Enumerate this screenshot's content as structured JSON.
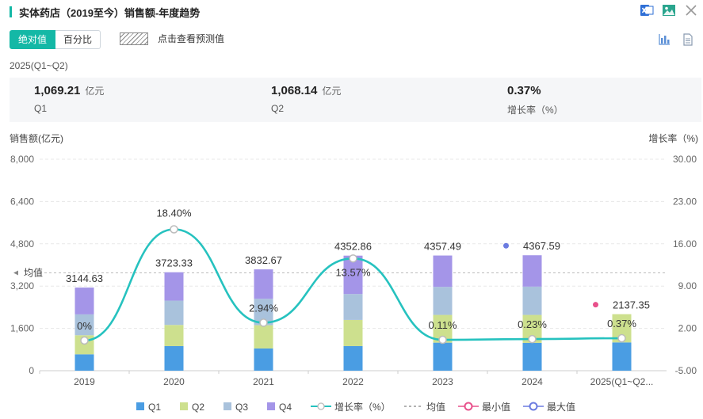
{
  "header": {
    "title": "实体药店（2019至今）销售额-年度趋势",
    "icons": [
      "excel-export-icon",
      "image-export-icon",
      "close-icon"
    ]
  },
  "toolbar": {
    "absolute_label": "绝对值",
    "percent_label": "百分比",
    "forecast_label": "点击查看预测值",
    "view_icons": [
      "bar-chart-icon",
      "table-icon"
    ]
  },
  "summary": {
    "period": "2025(Q1~Q2)",
    "items": [
      {
        "value": "1,069.21",
        "unit": "亿元",
        "label": "Q1"
      },
      {
        "value": "1,068.14",
        "unit": "亿元",
        "label": "Q2"
      },
      {
        "value": "0.37%",
        "unit": "",
        "label": "增长率（%）"
      }
    ]
  },
  "chart_data": {
    "type": "bar",
    "stacked": true,
    "ylabel": "销售额(亿元)",
    "y2label": "增长率（%)",
    "ylim": [
      0,
      8000
    ],
    "yticks": [
      "0",
      "1,600",
      "3,200",
      "4,800",
      "6,400",
      "8,000"
    ],
    "y2lim": [
      -5,
      30
    ],
    "y2ticks": [
      "-5.00",
      "2.00",
      "9.00",
      "16.00",
      "23.00",
      "30.00"
    ],
    "categories": [
      "2019",
      "2020",
      "2021",
      "2022",
      "2023",
      "2024",
      "2025(Q1~Q2..."
    ],
    "series": [
      {
        "name": "Q1",
        "color": "#4a9de3",
        "values": [
          620,
          930,
          840,
          930,
          1060,
          1050,
          1069.21
        ]
      },
      {
        "name": "Q2",
        "color": "#cde08e",
        "values": [
          720,
          800,
          880,
          990,
          1050,
          1060,
          1068.14
        ]
      },
      {
        "name": "Q3",
        "color": "#a9c2dc",
        "values": [
          790,
          920,
          1000,
          980,
          1060,
          1070,
          0
        ]
      },
      {
        "name": "Q4",
        "color": "#a495e8",
        "values": [
          1014.63,
          1073.33,
          1112.67,
          1452.86,
          1187.49,
          1187.59,
          0
        ]
      }
    ],
    "totals": [
      3144.63,
      3723.33,
      3832.67,
      4352.86,
      4357.49,
      4367.59,
      2137.35
    ],
    "total_labels": [
      "3144.63",
      "3723.33",
      "3832.67",
      "4352.86",
      "4357.49",
      "4367.59",
      "2137.35"
    ],
    "growth": {
      "name": "增长率（%）",
      "color": "#26c2bf",
      "values": [
        0,
        18.4,
        2.94,
        13.57,
        0.11,
        0.23,
        0.37
      ],
      "labels": [
        "0%",
        "18.40%",
        "2.94%",
        "13.57%",
        "0.11%",
        "0.23%",
        "0.37%"
      ]
    },
    "average": {
      "label": "均值",
      "value": 3700
    },
    "min_marker": {
      "index": 6,
      "color": "#e8508b"
    },
    "max_marker": {
      "index": 5,
      "color": "#6b7be0"
    },
    "legend": [
      {
        "name": "Q1",
        "kind": "bar",
        "color": "#4a9de3"
      },
      {
        "name": "Q2",
        "kind": "bar",
        "color": "#cde08e"
      },
      {
        "name": "Q3",
        "kind": "bar",
        "color": "#a9c2dc"
      },
      {
        "name": "Q4",
        "kind": "bar",
        "color": "#a495e8"
      },
      {
        "name": "增长率（%）",
        "kind": "line",
        "color": "#26c2bf"
      },
      {
        "name": "均值",
        "kind": "dash",
        "color": "#999999"
      },
      {
        "name": "最小值",
        "kind": "circle",
        "color": "#e8508b"
      },
      {
        "name": "最大值",
        "kind": "circle",
        "color": "#6b7be0"
      }
    ],
    "grid": true,
    "legend_position": "bottom"
  }
}
